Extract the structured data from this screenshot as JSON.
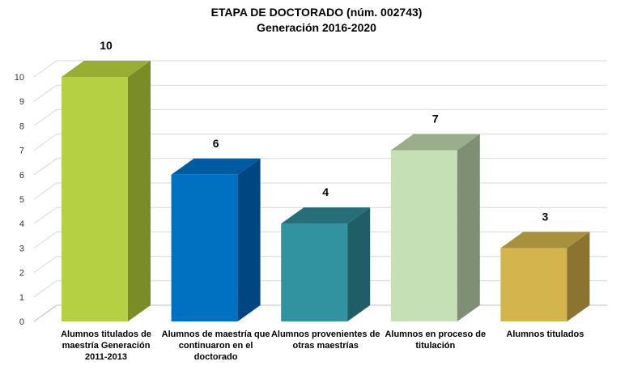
{
  "chart_data": {
    "type": "bar",
    "title": "ETAPA DE DOCTORADO (núm. 002743)",
    "subtitle": "Generación 2016-2020",
    "categories": [
      "Alumnos titulados  de maestría Generación 2011-2013",
      "Alumnos de maestría que continuaron en el doctorado",
      "Alumnos provenientes de otras maestrías",
      "Alumnos en proceso de titulación",
      "Alumnos titulados"
    ],
    "values": [
      10,
      6,
      4,
      7,
      3
    ],
    "data_labels": [
      "10",
      "6",
      "4",
      "7",
      "3"
    ],
    "colors": [
      {
        "front": "#b5d042",
        "side": "#7a8c27",
        "top": "#97ad33"
      },
      {
        "front": "#0070c0",
        "side": "#004680",
        "top": "#005aa0"
      },
      {
        "front": "#31939f",
        "side": "#1f5e66",
        "top": "#276f78"
      },
      {
        "front": "#c5e0b4",
        "side": "#7f8f74",
        "top": "#9aae8b"
      },
      {
        "front": "#d4b44c",
        "side": "#8a7430",
        "top": "#a8913c"
      }
    ],
    "y_ticks": [
      "0",
      "1",
      "2",
      "3",
      "4",
      "5",
      "6",
      "7",
      "8",
      "9",
      "10"
    ],
    "ylim": [
      0,
      10
    ],
    "grid": true,
    "legend": "none",
    "xlabel": "",
    "ylabel": ""
  }
}
